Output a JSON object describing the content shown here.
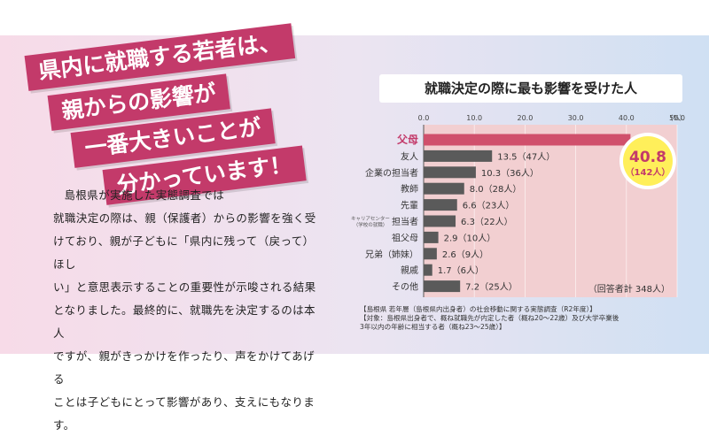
{
  "headline": {
    "line1": "県内に就職する若者は、",
    "line2": "親からの影響が",
    "line3": "一番大きいことが",
    "line4": "分かっています！"
  },
  "body": {
    "line1": "島根県が実施した実態調査では",
    "line2": "就職決定の際は、親（保護者）からの影響を強く受",
    "line3": "けており、親が子どもに「県内に残って（戻って）ほし",
    "line4": "い」と意思表示することの重要性が示唆される結果",
    "line5": "となりました。最終的に、就職先を決定するのは本人",
    "line6": "ですが、親がきっかけを作ったり、声をかけてあげる",
    "line7": "ことは子どもにとって影響があり、支えにもなります。"
  },
  "colors": {
    "accent": "#c33a6a",
    "bar_top": "#d0506c",
    "bar": "#5a5a5a",
    "plot_bg": "#f2cfd1",
    "callout_text": "#c33a6a",
    "callout_fill": "#ffef5a"
  },
  "chart_data": {
    "type": "bar",
    "orientation": "horizontal",
    "title": "就職決定の際に最も影響を受けた人",
    "unit": "（%）",
    "xlim": [
      0,
      50
    ],
    "ticks": [
      "0.0",
      "10.0",
      "20.0",
      "30.0",
      "40.0",
      "50.0"
    ],
    "categories": [
      "父母",
      "友人",
      "企業の担当者",
      "教師",
      "先輩",
      "担当者",
      "祖父母",
      "兄弟（姉妹）",
      "親戚",
      "その他"
    ],
    "category_subnotes": [
      "",
      "",
      "",
      "",
      "",
      "キャリアセンター（学校の就職）",
      "",
      "",
      "",
      ""
    ],
    "values": [
      40.8,
      13.5,
      10.3,
      8.0,
      6.6,
      6.3,
      2.9,
      2.6,
      1.7,
      7.2
    ],
    "value_labels": [
      "",
      "13.5（47人）",
      "10.3（36人）",
      "8.0（28人）",
      "6.6（23人）",
      "6.3（22人）",
      "2.9（10人）",
      "2.6（9人）",
      "1.7（6人）",
      "7.2（25人）"
    ],
    "highlight": {
      "value": "40.8",
      "count": "（142人）"
    },
    "total_note": "（回答者計 348人）"
  },
  "footnote": {
    "source": "【島根県 若年層（島根県内出身者）の社会移動に関する実態調査（R2年度）】",
    "target_line1": "【対象：島根県出身者で、概ね就職先が内定した者（概ね20〜22歳）及び大学卒業後",
    "target_line2": "3年以内の年齢に相当する者（概ね23〜25歳）】"
  }
}
